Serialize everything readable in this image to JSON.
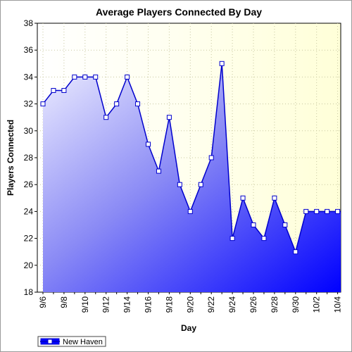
{
  "chart_data": {
    "type": "area",
    "title": "Average Players Connected By Day",
    "xlabel": "Day",
    "ylabel": "Players Connected",
    "ylim": [
      18,
      38
    ],
    "yticks": [
      18,
      20,
      22,
      24,
      26,
      28,
      30,
      32,
      34,
      36,
      38
    ],
    "x": [
      "9/6",
      "9/7",
      "9/8",
      "9/9",
      "9/10",
      "9/11",
      "9/12",
      "9/13",
      "9/14",
      "9/15",
      "9/16",
      "9/17",
      "9/18",
      "9/19",
      "9/20",
      "9/21",
      "9/22",
      "9/23",
      "9/24",
      "9/25",
      "9/26",
      "9/27",
      "9/28",
      "9/29",
      "9/30",
      "10/1",
      "10/2",
      "10/3",
      "10/4"
    ],
    "xtick_labels": [
      "9/6",
      "9/8",
      "9/10",
      "9/12",
      "9/14",
      "9/16",
      "9/18",
      "9/20",
      "9/22",
      "9/24",
      "9/26",
      "9/28",
      "9/30",
      "10/2",
      "10/4"
    ],
    "series": [
      {
        "name": "New Haven",
        "color": "#0000ff",
        "values": [
          32,
          33,
          33,
          34,
          34,
          34,
          31,
          32,
          34,
          32,
          29,
          27,
          31,
          26,
          24,
          26,
          28,
          35,
          22,
          25,
          23,
          22,
          25,
          23,
          21,
          24,
          24,
          24,
          24
        ]
      }
    ],
    "grid": true,
    "legend": "bottom-left",
    "colors": {
      "plot_bg_top_right": "#ffffdd",
      "plot_bg_left": "#ffffff",
      "fill_top": "#ebebff",
      "fill_bottom": "#0000ff",
      "line": "#0000cc",
      "grid": "#c8c8a0"
    }
  }
}
